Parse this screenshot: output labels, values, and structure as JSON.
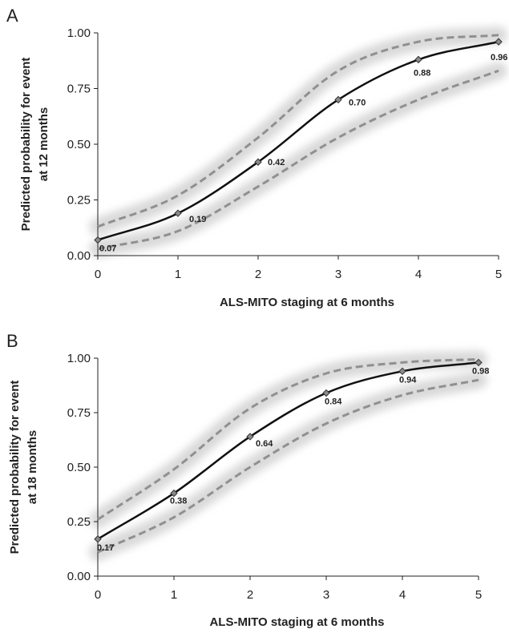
{
  "chart_data": [
    {
      "type": "line",
      "panel": "A",
      "xlabel": "ALS-MITO staging at 6 months",
      "ylabel": "Predicted probability for event at 12 months",
      "ylabel_lines": [
        "Predicted probability for event",
        "at 12 months"
      ],
      "x": [
        0,
        1,
        2,
        3,
        4,
        5
      ],
      "xticks": [
        "0",
        "1",
        "2",
        "3",
        "4",
        "5"
      ],
      "yticks": [
        "0.00",
        "0.25",
        "0.50",
        "0.75",
        "1.00"
      ],
      "xlim": [
        0,
        5
      ],
      "ylim": [
        0,
        1
      ],
      "grid": false,
      "series": [
        {
          "role": "estimate",
          "values": [
            0.07,
            0.19,
            0.42,
            0.7,
            0.88,
            0.96
          ],
          "labels": [
            "0.07",
            "0.19",
            "0.42",
            "0.70",
            "0.88",
            "0.96"
          ]
        },
        {
          "role": "upper",
          "values": [
            0.13,
            0.27,
            0.53,
            0.83,
            0.96,
            0.99
          ]
        },
        {
          "role": "lower",
          "values": [
            0.03,
            0.11,
            0.31,
            0.53,
            0.7,
            0.83
          ]
        }
      ]
    },
    {
      "type": "line",
      "panel": "B",
      "xlabel": "ALS-MITO staging at 6 months",
      "ylabel": "Predicted probability for event at 18 months",
      "ylabel_lines": [
        "Predicted probability for event",
        "at 18 months"
      ],
      "x": [
        0,
        1,
        2,
        3,
        4,
        5
      ],
      "xticks": [
        "0",
        "1",
        "2",
        "3",
        "4",
        "5"
      ],
      "yticks": [
        "0.00",
        "0.25",
        "0.50",
        "0.75",
        "1.00"
      ],
      "xlim": [
        0,
        5
      ],
      "ylim": [
        0,
        1
      ],
      "grid": false,
      "series": [
        {
          "role": "estimate",
          "values": [
            0.17,
            0.38,
            0.64,
            0.84,
            0.94,
            0.98
          ],
          "labels": [
            "0.17",
            "0.38",
            "0.64",
            "0.84",
            "0.94",
            "0.98"
          ]
        },
        {
          "role": "upper",
          "values": [
            0.26,
            0.49,
            0.77,
            0.93,
            0.98,
            0.995
          ]
        },
        {
          "role": "lower",
          "values": [
            0.11,
            0.27,
            0.5,
            0.7,
            0.83,
            0.9
          ]
        }
      ]
    }
  ],
  "colors": {
    "estimate": "#111111",
    "ci": "#909090",
    "halo": "#d9d9d9",
    "axis": "#222222"
  }
}
